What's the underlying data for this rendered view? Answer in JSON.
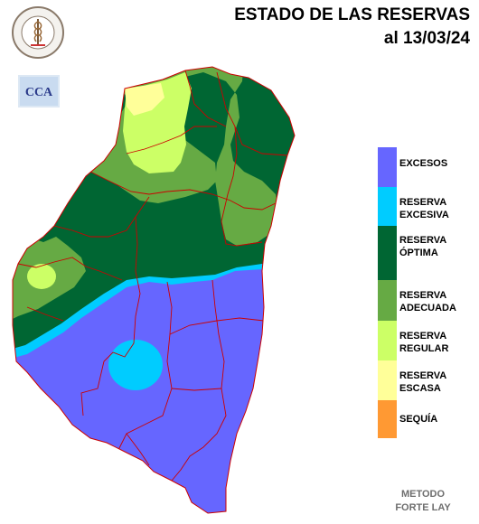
{
  "header": {
    "title_line1": "ESTADO DE LAS RESERVAS",
    "title_line2": "al 13/03/24"
  },
  "logos": {
    "seal_text": "BOLSA DE CEREALES DE ENTRE RIOS",
    "cca_text": "CCA"
  },
  "legend": [
    {
      "label": "EXCESOS",
      "color": "#6666ff"
    },
    {
      "label": "RESERVA\nEXCESIVA",
      "color": "#00ccff"
    },
    {
      "label": "RESERVA\nÓPTIMA",
      "color": "#006633"
    },
    {
      "label": "RESERVA\nADECUADA",
      "color": "#66aa44"
    },
    {
      "label": "RESERVA\nREGULAR",
      "color": "#ccff66"
    },
    {
      "label": "RESERVA\nESCASA",
      "color": "#ffff99"
    },
    {
      "label": "SEQUÍA",
      "color": "#ff9933"
    }
  ],
  "footer": {
    "method": "METODO\nFORTE LAY"
  },
  "map_colors": {
    "border": "#cc0000",
    "outline": "#333333"
  }
}
